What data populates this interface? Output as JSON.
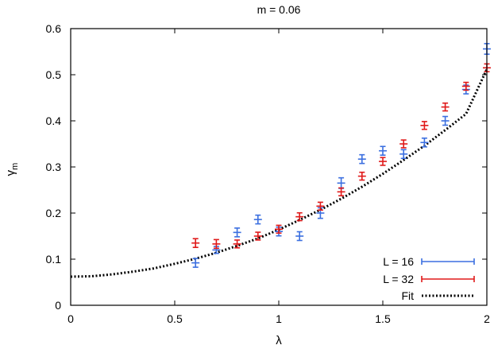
{
  "chart_data": {
    "type": "scatter",
    "title": "m = 0.06",
    "xlabel": "λ",
    "ylabel_main": "γ",
    "ylabel_sub": "m",
    "xlim": [
      0,
      2
    ],
    "ylim": [
      0,
      0.6
    ],
    "xticks": [
      0,
      0.5,
      1,
      1.5,
      2
    ],
    "xtick_labels": [
      "0",
      "0.5",
      "1",
      "1.5",
      "2"
    ],
    "yticks": [
      0,
      0.1,
      0.2,
      0.3,
      0.4,
      0.5,
      0.6
    ],
    "ytick_labels": [
      "0",
      "0.1",
      "0.2",
      "0.3",
      "0.4",
      "0.5",
      "0.6"
    ],
    "grid": false,
    "legend_position": "bottom-right",
    "series": [
      {
        "name": "L = 16",
        "color": "#3b6fe0",
        "points": [
          {
            "x": 0.6,
            "y": 0.092,
            "err": 0.006
          },
          {
            "x": 0.7,
            "y": 0.12,
            "err": 0.004
          },
          {
            "x": 0.8,
            "y": 0.158,
            "err": 0.006
          },
          {
            "x": 0.9,
            "y": 0.186,
            "err": 0.006
          },
          {
            "x": 1.0,
            "y": 0.16,
            "err": 0.006
          },
          {
            "x": 1.1,
            "y": 0.15,
            "err": 0.006
          },
          {
            "x": 1.2,
            "y": 0.2,
            "err": 0.008
          },
          {
            "x": 1.3,
            "y": 0.265,
            "err": 0.008
          },
          {
            "x": 1.4,
            "y": 0.317,
            "err": 0.006
          },
          {
            "x": 1.5,
            "y": 0.335,
            "err": 0.006
          },
          {
            "x": 1.6,
            "y": 0.328,
            "err": 0.006
          },
          {
            "x": 1.7,
            "y": 0.353,
            "err": 0.006
          },
          {
            "x": 1.8,
            "y": 0.4,
            "err": 0.006
          },
          {
            "x": 1.9,
            "y": 0.468,
            "err": 0.006
          },
          {
            "x": 2.0,
            "y": 0.556,
            "err": 0.008
          }
        ]
      },
      {
        "name": "L = 32",
        "color": "#e01a1a",
        "points": [
          {
            "x": 0.6,
            "y": 0.135,
            "err": 0.006
          },
          {
            "x": 0.7,
            "y": 0.133,
            "err": 0.006
          },
          {
            "x": 0.8,
            "y": 0.133,
            "err": 0.005
          },
          {
            "x": 0.9,
            "y": 0.15,
            "err": 0.005
          },
          {
            "x": 1.0,
            "y": 0.165,
            "err": 0.005
          },
          {
            "x": 1.1,
            "y": 0.192,
            "err": 0.005
          },
          {
            "x": 1.2,
            "y": 0.215,
            "err": 0.005
          },
          {
            "x": 1.3,
            "y": 0.246,
            "err": 0.005
          },
          {
            "x": 1.4,
            "y": 0.28,
            "err": 0.005
          },
          {
            "x": 1.5,
            "y": 0.312,
            "err": 0.005
          },
          {
            "x": 1.6,
            "y": 0.35,
            "err": 0.005
          },
          {
            "x": 1.7,
            "y": 0.39,
            "err": 0.005
          },
          {
            "x": 1.8,
            "y": 0.43,
            "err": 0.005
          },
          {
            "x": 1.9,
            "y": 0.475,
            "err": 0.005
          },
          {
            "x": 2.0,
            "y": 0.515,
            "err": 0.005
          }
        ]
      }
    ],
    "fit": {
      "name": "Fit",
      "style": "dotted",
      "color": "#000000",
      "x": [
        0,
        0.1,
        0.2,
        0.3,
        0.4,
        0.5,
        0.6,
        0.7,
        0.8,
        0.9,
        1.0,
        1.1,
        1.2,
        1.3,
        1.4,
        1.5,
        1.6,
        1.7,
        1.8,
        1.9,
        2.0
      ],
      "y": [
        0.062,
        0.063,
        0.067,
        0.073,
        0.08,
        0.09,
        0.101,
        0.114,
        0.129,
        0.145,
        0.164,
        0.185,
        0.207,
        0.231,
        0.257,
        0.285,
        0.315,
        0.346,
        0.38,
        0.415,
        0.512
      ]
    }
  }
}
